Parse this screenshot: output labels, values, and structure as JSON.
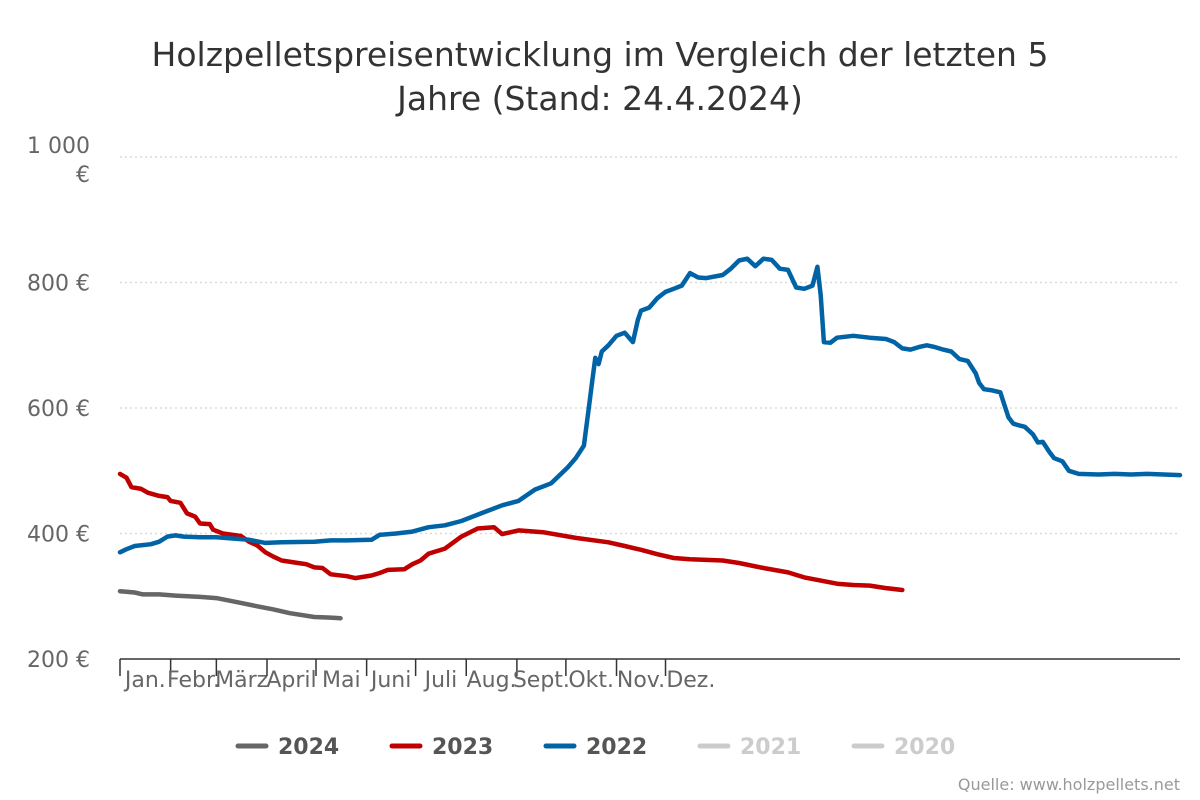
{
  "chart_data": {
    "type": "line",
    "title_lines": [
      "Holzpelletspreisentwicklung im Vergleich der letzten 5",
      "Jahre (Stand: 24.4.2024)"
    ],
    "ylim": [
      200,
      1000
    ],
    "y_ticks": [
      200,
      400,
      600,
      800,
      1000
    ],
    "y_tick_labels": [
      "200 €",
      "400 €",
      "600 €",
      "800 €",
      "1 000 €"
    ],
    "x_months": [
      "Jan.",
      "Febr.",
      "März",
      "April",
      "Mai",
      "Juni",
      "Juli",
      "Aug.",
      "Sept.",
      "Okt.",
      "Nov.",
      "Dez."
    ],
    "x_unit": "day of year",
    "grid": true,
    "legend_position": "bottom",
    "series": [
      {
        "name": "2024",
        "color": "#666666",
        "visible": true,
        "points": [
          [
            1,
            308
          ],
          [
            10,
            306
          ],
          [
            15,
            303
          ],
          [
            25,
            303
          ],
          [
            35,
            301
          ],
          [
            50,
            299
          ],
          [
            60,
            297
          ],
          [
            72,
            291
          ],
          [
            85,
            284
          ],
          [
            95,
            279
          ],
          [
            105,
            273
          ],
          [
            120,
            267
          ],
          [
            130,
            266
          ],
          [
            136,
            265
          ]
        ]
      },
      {
        "name": "2023",
        "color": "#c00000",
        "visible": true,
        "points": [
          [
            1,
            495
          ],
          [
            5,
            489
          ],
          [
            8,
            474
          ],
          [
            14,
            471
          ],
          [
            18,
            465
          ],
          [
            25,
            460
          ],
          [
            30,
            458
          ],
          [
            32,
            452
          ],
          [
            38,
            449
          ],
          [
            42,
            432
          ],
          [
            47,
            427
          ],
          [
            50,
            416
          ],
          [
            56,
            415
          ],
          [
            58,
            406
          ],
          [
            64,
            400
          ],
          [
            75,
            396
          ],
          [
            80,
            387
          ],
          [
            85,
            381
          ],
          [
            90,
            370
          ],
          [
            95,
            363
          ],
          [
            100,
            357
          ],
          [
            110,
            353
          ],
          [
            115,
            351
          ],
          [
            120,
            346
          ],
          [
            125,
            345
          ],
          [
            130,
            335
          ],
          [
            140,
            332
          ],
          [
            145,
            329
          ],
          [
            155,
            333
          ],
          [
            160,
            337
          ],
          [
            165,
            342
          ],
          [
            175,
            343
          ],
          [
            180,
            351
          ],
          [
            185,
            357
          ],
          [
            190,
            368
          ],
          [
            200,
            376
          ],
          [
            210,
            395
          ],
          [
            220,
            408
          ],
          [
            230,
            410
          ],
          [
            235,
            399
          ],
          [
            245,
            405
          ],
          [
            260,
            402
          ],
          [
            280,
            393
          ],
          [
            300,
            386
          ],
          [
            310,
            380
          ],
          [
            320,
            374
          ],
          [
            330,
            367
          ],
          [
            340,
            361
          ],
          [
            350,
            359
          ],
          [
            360,
            358
          ],
          [
            370,
            357
          ],
          [
            380,
            353
          ],
          [
            395,
            345
          ],
          [
            410,
            338
          ],
          [
            420,
            330
          ],
          [
            430,
            325
          ],
          [
            440,
            320
          ],
          [
            450,
            318
          ],
          [
            460,
            317
          ],
          [
            470,
            313
          ],
          [
            480,
            310
          ]
        ]
      },
      {
        "name": "2022",
        "color": "#0063a6",
        "visible": true,
        "points": [
          [
            1,
            370
          ],
          [
            5,
            375
          ],
          [
            10,
            380
          ],
          [
            20,
            383
          ],
          [
            25,
            387
          ],
          [
            30,
            395
          ],
          [
            35,
            397
          ],
          [
            40,
            395
          ],
          [
            50,
            394
          ],
          [
            60,
            394
          ],
          [
            70,
            392
          ],
          [
            80,
            390
          ],
          [
            90,
            385
          ],
          [
            100,
            386
          ],
          [
            120,
            387
          ],
          [
            130,
            389
          ],
          [
            140,
            389
          ],
          [
            155,
            390
          ],
          [
            160,
            398
          ],
          [
            170,
            400
          ],
          [
            180,
            403
          ],
          [
            190,
            410
          ],
          [
            200,
            413
          ],
          [
            210,
            420
          ],
          [
            225,
            435
          ],
          [
            235,
            445
          ],
          [
            245,
            452
          ],
          [
            255,
            470
          ],
          [
            265,
            480
          ],
          [
            275,
            505
          ],
          [
            280,
            520
          ],
          [
            285,
            540
          ],
          [
            288,
            600
          ],
          [
            290,
            640
          ],
          [
            292,
            680
          ],
          [
            294,
            670
          ],
          [
            296,
            690
          ],
          [
            300,
            700
          ],
          [
            305,
            715
          ],
          [
            310,
            720
          ],
          [
            315,
            705
          ],
          [
            318,
            740
          ],
          [
            320,
            755
          ],
          [
            325,
            760
          ],
          [
            330,
            775
          ],
          [
            335,
            785
          ],
          [
            340,
            790
          ],
          [
            345,
            795
          ],
          [
            350,
            815
          ],
          [
            355,
            808
          ],
          [
            360,
            807
          ],
          [
            370,
            812
          ],
          [
            375,
            822
          ],
          [
            380,
            835
          ],
          [
            385,
            838
          ],
          [
            390,
            826
          ],
          [
            395,
            838
          ],
          [
            400,
            836
          ],
          [
            405,
            822
          ],
          [
            410,
            820
          ],
          [
            415,
            792
          ],
          [
            420,
            790
          ],
          [
            425,
            795
          ],
          [
            428,
            825
          ],
          [
            430,
            780
          ],
          [
            432,
            705
          ],
          [
            436,
            704
          ],
          [
            440,
            712
          ],
          [
            450,
            715
          ],
          [
            460,
            712
          ],
          [
            470,
            710
          ],
          [
            475,
            705
          ],
          [
            480,
            695
          ],
          [
            485,
            693
          ],
          [
            490,
            697
          ],
          [
            495,
            700
          ],
          [
            500,
            697
          ],
          [
            505,
            693
          ],
          [
            510,
            690
          ],
          [
            515,
            678
          ],
          [
            520,
            675
          ],
          [
            525,
            655
          ],
          [
            527,
            640
          ],
          [
            530,
            630
          ],
          [
            535,
            628
          ],
          [
            540,
            625
          ],
          [
            545,
            585
          ],
          [
            548,
            575
          ],
          [
            552,
            572
          ],
          [
            555,
            570
          ],
          [
            560,
            558
          ],
          [
            563,
            545
          ],
          [
            566,
            546
          ],
          [
            570,
            530
          ],
          [
            573,
            520
          ],
          [
            578,
            515
          ],
          [
            582,
            500
          ],
          [
            588,
            495
          ],
          [
            600,
            494
          ],
          [
            610,
            495
          ],
          [
            620,
            494
          ],
          [
            630,
            495
          ],
          [
            640,
            494
          ],
          [
            650,
            493
          ]
        ]
      },
      {
        "name": "2021",
        "color": "#cccccc",
        "visible": false,
        "points": []
      },
      {
        "name": "2020",
        "color": "#cccccc",
        "visible": false,
        "points": []
      }
    ],
    "credit": "Quelle: www.holzpellets.net"
  }
}
